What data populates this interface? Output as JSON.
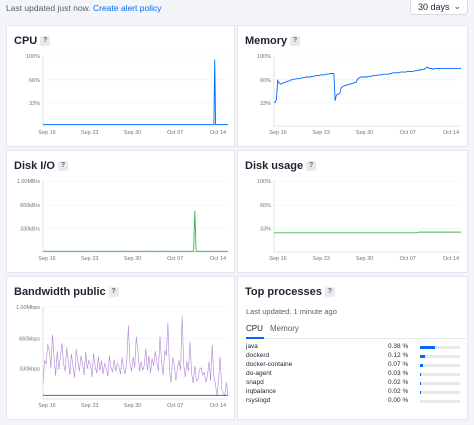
{
  "header": {
    "last_updated": "Last updated just now.",
    "alert_link": "Create alert policy",
    "range_value": "30 days"
  },
  "cards": {
    "cpu": {
      "title": "CPU",
      "help": "?"
    },
    "memory": {
      "title": "Memory",
      "help": "?"
    },
    "disk_io": {
      "title": "Disk I/O",
      "help": "?"
    },
    "disk_usage": {
      "title": "Disk usage",
      "help": "?"
    },
    "bandwidth": {
      "title": "Bandwidth public",
      "help": "?"
    },
    "top_processes": {
      "title": "Top processes",
      "help": "?",
      "updated": "Last updated: 1 minute ago",
      "tabs": [
        "CPU",
        "Memory"
      ],
      "active_tab": "CPU",
      "rows": [
        {
          "name": "java",
          "pct": "0.38 %",
          "fraction": 0.38
        },
        {
          "name": "dockerd",
          "pct": "0.12 %",
          "fraction": 0.12
        },
        {
          "name": "docker-containe",
          "pct": "0.07 %",
          "fraction": 0.07
        },
        {
          "name": "do-agent",
          "pct": "0.03 %",
          "fraction": 0.03
        },
        {
          "name": "snapd",
          "pct": "0.02 %",
          "fraction": 0.02
        },
        {
          "name": "irqbalance",
          "pct": "0.02 %",
          "fraction": 0.02
        },
        {
          "name": "rsyslogd",
          "pct": "0.00 %",
          "fraction": 0.0
        }
      ]
    }
  },
  "chart_data": [
    {
      "type": "line",
      "id": "cpu",
      "x_ticks": [
        "Sep 16",
        "Sep 23",
        "Sep 30",
        "Oct 07",
        "Oct 14"
      ],
      "y_ticks": [
        "100%",
        "66%",
        "33%"
      ],
      "ylim": [
        0,
        100
      ],
      "color": "#0069ff",
      "series": [
        {
          "values": [
            2,
            2,
            2,
            2,
            2,
            2,
            2,
            2,
            2,
            2,
            2,
            2,
            2,
            2,
            2,
            2,
            2,
            2,
            2,
            2,
            2,
            2,
            2,
            2,
            2,
            2,
            2,
            2,
            2,
            2,
            2,
            2,
            2,
            2,
            2,
            2,
            2,
            2,
            2,
            2,
            2,
            2,
            2,
            2,
            2,
            2,
            2,
            2,
            2,
            2,
            2,
            2,
            2,
            2,
            2,
            2,
            2,
            2,
            2,
            2,
            2,
            2,
            2,
            2,
            2,
            2,
            2,
            2,
            2,
            2,
            2,
            2,
            2,
            2,
            2,
            2,
            2,
            2,
            2,
            2,
            2,
            2,
            2,
            2,
            2,
            2,
            2,
            2,
            2,
            2,
            2,
            2,
            2,
            2,
            2,
            2,
            2,
            2,
            2,
            2,
            2,
            2,
            2,
            2,
            2,
            2,
            2,
            2,
            2,
            2,
            2,
            2,
            2,
            2,
            2,
            2,
            2,
            2,
            2,
            2,
            2,
            2,
            2,
            2,
            2,
            2,
            2,
            2,
            2,
            2,
            2,
            2,
            2,
            2,
            2,
            2,
            2,
            2,
            2,
            2,
            2,
            2,
            2,
            2,
            2,
            2,
            2,
            2,
            2,
            2,
            2,
            2,
            2,
            2,
            2,
            2,
            2,
            2,
            2,
            2,
            2,
            2,
            2,
            2,
            2,
            2,
            2,
            2,
            2,
            2,
            2,
            2,
            2,
            2,
            2,
            2,
            2,
            2,
            2,
            2,
            2,
            2,
            2,
            2,
            2,
            2,
            2,
            2,
            2,
            2,
            2,
            2,
            2,
            2,
            2,
            2,
            2,
            2,
            2,
            2,
            2,
            2,
            2,
            2,
            2,
            2,
            2,
            95,
            2,
            2,
            2,
            2,
            2,
            2,
            2,
            2,
            2,
            2,
            2,
            2,
            2,
            2,
            2,
            2
          ]
        }
      ]
    },
    {
      "type": "line",
      "id": "memory",
      "x_ticks": [
        "Sep 16",
        "Sep 23",
        "Sep 30",
        "Oct 07",
        "Oct 14"
      ],
      "y_ticks": [
        "100%",
        "66%",
        "33%"
      ],
      "ylim": [
        0,
        100
      ],
      "color": "#0069ff",
      "series": [
        {
          "values": [
            34,
            34,
            38,
            65,
            62,
            60,
            60,
            61,
            62,
            62,
            63,
            64,
            64,
            65,
            66,
            66,
            67,
            67,
            67,
            68,
            68,
            68,
            68,
            69,
            69,
            69,
            70,
            70,
            70,
            70,
            70,
            71,
            71,
            71,
            72,
            72,
            72,
            72,
            73,
            73,
            73,
            73,
            74,
            74,
            74,
            74,
            75,
            75,
            75,
            75,
            36,
            44,
            45,
            46,
            47,
            55,
            56,
            57,
            58,
            58,
            59,
            59,
            60,
            60,
            61,
            61,
            62,
            62,
            66,
            68,
            69,
            70,
            70,
            70,
            70,
            70,
            70,
            71,
            71,
            71,
            71,
            72,
            72,
            72,
            72,
            73,
            73,
            73,
            73,
            74,
            74,
            74,
            74,
            74,
            74,
            75,
            75,
            76,
            76,
            76,
            76,
            76,
            76,
            77,
            77,
            77,
            77,
            77,
            77,
            78,
            78,
            78,
            78,
            78,
            78,
            79,
            79,
            79,
            80,
            80,
            80,
            81,
            81,
            81,
            82,
            84,
            84,
            82,
            82,
            82,
            81,
            82,
            82,
            82,
            82,
            82,
            82,
            82,
            82,
            82,
            82,
            82,
            82,
            82,
            82,
            82,
            82,
            82,
            82,
            82,
            82,
            82,
            82,
            82
          ]
        }
      ]
    },
    {
      "type": "line",
      "id": "disk_io",
      "x_ticks": [
        "Sep 16",
        "Sep 23",
        "Sep 30",
        "Oct 07",
        "Oct 14"
      ],
      "y_ticks": [
        "1.00MB/s",
        "660kB/s",
        "330kB/s"
      ],
      "ylim": [
        0,
        1000
      ],
      "color": "#3cb64a",
      "series": [
        {
          "values": [
            10,
            10,
            12,
            10,
            10,
            11,
            12,
            10,
            10,
            11,
            10,
            10,
            12,
            10,
            10,
            11,
            10,
            10,
            12,
            11,
            10,
            10,
            11,
            10,
            10,
            11,
            10,
            10,
            12,
            10,
            10,
            11,
            12,
            10,
            10,
            11,
            10,
            10,
            12,
            11,
            10,
            10,
            11,
            10,
            10,
            12,
            10,
            10,
            11,
            10,
            10,
            12,
            11,
            10,
            10,
            11,
            10,
            10,
            12,
            10,
            10,
            11,
            10,
            10,
            12,
            11,
            10,
            10,
            11,
            10,
            10,
            11,
            10,
            10,
            12,
            10,
            10,
            11,
            10,
            10,
            12,
            11,
            10,
            10,
            11,
            10,
            10,
            11,
            10,
            10,
            12,
            10,
            10,
            11,
            10,
            10,
            12,
            11,
            10,
            10,
            11,
            10,
            10,
            11,
            10,
            10,
            12,
            10,
            10,
            11,
            10,
            10,
            12,
            11,
            10,
            10,
            11,
            10,
            10,
            580,
            10,
            10,
            12,
            10,
            10,
            11,
            10,
            10,
            12,
            11,
            10,
            10,
            11,
            10,
            10,
            11,
            10,
            10,
            12,
            10,
            10,
            11,
            10,
            10,
            12,
            11
          ]
        }
      ]
    },
    {
      "type": "line",
      "id": "disk_usage",
      "x_ticks": [
        "Sep 16",
        "Sep 23",
        "Sep 30",
        "Oct 07",
        "Oct 14"
      ],
      "y_ticks": [
        "100%",
        "66%",
        "33%"
      ],
      "ylim": [
        0,
        100
      ],
      "color": "#3cb64a",
      "series": [
        {
          "values": [
            27,
            27,
            27,
            27,
            27,
            27,
            27,
            27,
            27,
            27,
            27,
            27,
            27,
            27,
            27,
            27,
            27,
            27,
            27,
            27,
            27,
            27,
            27,
            27,
            27,
            27,
            27,
            27,
            27,
            27,
            27,
            27,
            27,
            27,
            27,
            27,
            27,
            27,
            27,
            27,
            27,
            27,
            27,
            27,
            27,
            27,
            27,
            27,
            27,
            27,
            27,
            27,
            27,
            27,
            27,
            27,
            27,
            27,
            27,
            27,
            27,
            27,
            28,
            28,
            28,
            28,
            28,
            28,
            28,
            28,
            28,
            28,
            28,
            28,
            28,
            28,
            28,
            28,
            28,
            28,
            28
          ]
        }
      ]
    },
    {
      "type": "line",
      "id": "bandwidth",
      "x_ticks": [
        "Sep 16",
        "Sep 23",
        "Sep 30",
        "Oct 07",
        "Oct 14"
      ],
      "y_ticks": [
        "1.00Mbps",
        "660kbps",
        "330kbps"
      ],
      "ylim": [
        0,
        1000
      ],
      "colors": [
        "#b086d6",
        "#5b3bb0"
      ],
      "series": [
        {
          "values": [
            180,
            420,
            380,
            600,
            520,
            340,
            700,
            460,
            250,
            520,
            320,
            460,
            610,
            380,
            300,
            560,
            410,
            260,
            490,
            350,
            230,
            540,
            420,
            300,
            470,
            380,
            260,
            510,
            330,
            420,
            370,
            240,
            500,
            350,
            280,
            460,
            310,
            420,
            270,
            390,
            330,
            250,
            470,
            340,
            290,
            430,
            300,
            390,
            350,
            270,
            450,
            330,
            270,
            420,
            800,
            380,
            300,
            460,
            340,
            680,
            520,
            300,
            410,
            310,
            360,
            550,
            310,
            470,
            280,
            440,
            360,
            520,
            400,
            300,
            680,
            400,
            260,
            530,
            470,
            830,
            310,
            180,
            450,
            380,
            200,
            330,
            420,
            310,
            900,
            370,
            240,
            410,
            300,
            620,
            280,
            170,
            360,
            200,
            210,
            320,
            340,
            260,
            290,
            180,
            250,
            410,
            200,
            590,
            250,
            170,
            30,
            200,
            460,
            110,
            60,
            40,
            180,
            40
          ]
        },
        {
          "values": [
            40,
            40,
            40,
            40,
            40,
            40,
            40,
            40,
            40,
            40,
            40,
            40,
            40,
            40,
            40,
            40,
            40,
            40,
            40,
            40,
            40,
            40,
            40,
            40,
            40,
            40,
            40,
            40,
            40,
            40,
            40,
            40,
            40,
            40,
            40,
            40,
            40,
            40,
            40,
            40,
            40,
            40,
            40,
            40,
            40,
            40,
            40,
            40,
            40,
            40,
            40,
            40,
            40,
            40,
            40,
            40,
            40,
            40,
            40,
            40,
            40,
            40,
            40,
            40,
            40,
            40,
            40,
            40,
            40,
            40,
            40,
            40,
            40,
            40,
            40,
            40,
            40,
            40,
            40,
            40,
            40,
            40,
            40,
            40,
            40,
            40,
            40,
            40,
            40,
            40,
            40,
            40,
            40,
            40,
            40,
            40,
            40,
            40,
            40,
            40,
            40,
            40,
            40,
            40,
            40,
            40,
            40,
            40,
            40,
            40,
            40,
            40,
            40,
            40,
            40,
            40,
            40,
            40
          ]
        }
      ]
    }
  ]
}
